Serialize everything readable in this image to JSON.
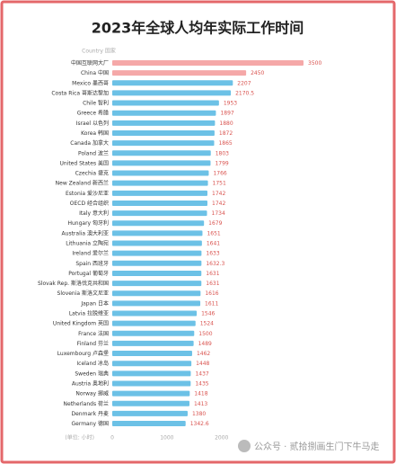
{
  "chart_data": {
    "type": "hbar",
    "title": "2023年全球人均年实际工作时间",
    "header": "Country 国家",
    "unit_label": "(单位: 小时)",
    "watermark": "公众号 · 贰拾捌画生门下牛马走",
    "categories": [
      "中国互联网大厂",
      "China 中国",
      "Mexico 墨西哥",
      "Costa Rica 哥斯达黎加",
      "Chile 智利",
      "Greece 希腊",
      "Israel 以色列",
      "Korea 韩国",
      "Canada 加拿大",
      "Poland 波兰",
      "United States 美国",
      "Czechia 捷克",
      "New Zealand 新西兰",
      "Estonia 爱沙尼亚",
      "OECD 经合组织",
      "Italy 意大利",
      "Hungary 匈牙利",
      "Australia 澳大利亚",
      "Lithuania 立陶宛",
      "Ireland 爱尔兰",
      "Spain 西班牙",
      "Portugal 葡萄牙",
      "Slovak Rep. 斯洛伐克共和国",
      "Slovenia 斯洛文尼亚",
      "Japan 日本",
      "Latvia 拉脱维亚",
      "United Kingdom 英国",
      "France 法国",
      "Finland 芬兰",
      "Luxembourg 卢森堡",
      "Iceland 冰岛",
      "Sweden 瑞典",
      "Austria 奥地利",
      "Norway 挪威",
      "Netherlands 荷兰",
      "Denmark 丹麦",
      "Germany 德国"
    ],
    "values": [
      3500,
      2450,
      2207,
      2170.5,
      1953,
      1897,
      1880,
      1872,
      1865,
      1803,
      1799,
      1766,
      1751,
      1742,
      1742,
      1734,
      1679,
      1651,
      1641,
      1633,
      1632.3,
      1631,
      1631,
      1616,
      1611,
      1546,
      1524,
      1500,
      1489,
      1462,
      1448,
      1437,
      1435,
      1418,
      1413,
      1380,
      1342.6
    ],
    "colors": [
      "#f5a8a8",
      "#f5a8a8",
      "#6cc1e6",
      "#6cc1e6",
      "#6cc1e6",
      "#6cc1e6",
      "#6cc1e6",
      "#6cc1e6",
      "#6cc1e6",
      "#6cc1e6",
      "#6cc1e6",
      "#6cc1e6",
      "#6cc1e6",
      "#6cc1e6",
      "#6cc1e6",
      "#6cc1e6",
      "#6cc1e6",
      "#6cc1e6",
      "#6cc1e6",
      "#6cc1e6",
      "#6cc1e6",
      "#6cc1e6",
      "#6cc1e6",
      "#6cc1e6",
      "#6cc1e6",
      "#6cc1e6",
      "#6cc1e6",
      "#6cc1e6",
      "#6cc1e6",
      "#6cc1e6",
      "#6cc1e6",
      "#6cc1e6",
      "#6cc1e6",
      "#6cc1e6",
      "#6cc1e6",
      "#6cc1e6",
      "#6cc1e6"
    ],
    "label_color": "#d9534f",
    "xlim": [
      0,
      3500
    ],
    "xticks": [
      0,
      1000,
      2000
    ],
    "grid": false
  }
}
